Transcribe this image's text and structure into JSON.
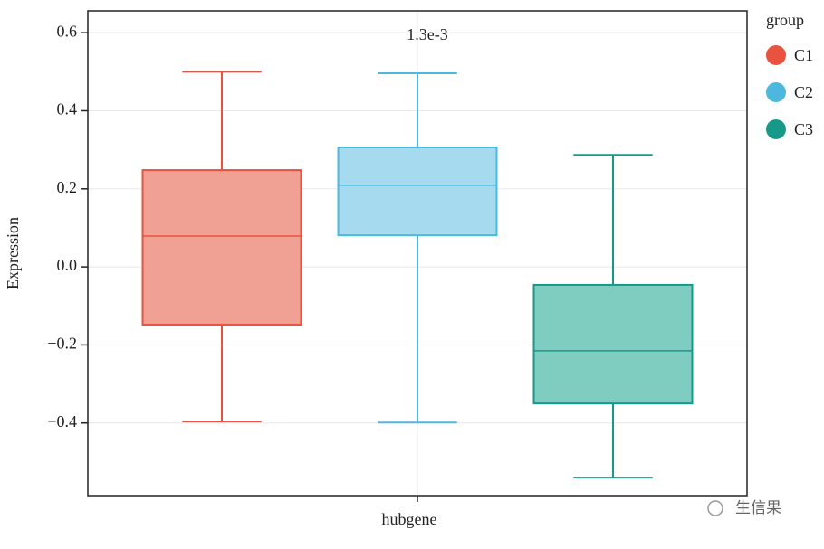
{
  "chart_data": {
    "type": "box",
    "annotation": "1.3e-3",
    "x_label": "hubgene",
    "y_label": "Expression",
    "legend_title": "group",
    "legend_position": "right",
    "grid": true,
    "watermark": "生信果",
    "ylim": [
      -0.586,
      0.656
    ],
    "yticks": [
      0.6,
      0.4,
      0.2,
      {
        "value": 0,
        "label": "0.0"
      },
      {
        "value": -0.2,
        "label": "−0.2"
      },
      {
        "value": -0.4,
        "label": "−0.4"
      }
    ],
    "series": [
      {
        "name": "C1",
        "color": "#e8523f",
        "fill": "#f0a194",
        "whisker_low": -0.396,
        "q1": -0.148,
        "median": 0.079,
        "q3": 0.248,
        "whisker_high": 0.5
      },
      {
        "name": "C2",
        "color": "#4db8de",
        "fill": "#a6dbef",
        "whisker_low": -0.399,
        "q1": 0.081,
        "median": 0.209,
        "q3": 0.306,
        "whisker_high": 0.496
      },
      {
        "name": "C3",
        "color": "#17998a",
        "fill": "#7fcdc1",
        "whisker_low": -0.54,
        "q1": -0.35,
        "median": -0.215,
        "q3": -0.046,
        "whisker_high": 0.287
      }
    ]
  }
}
